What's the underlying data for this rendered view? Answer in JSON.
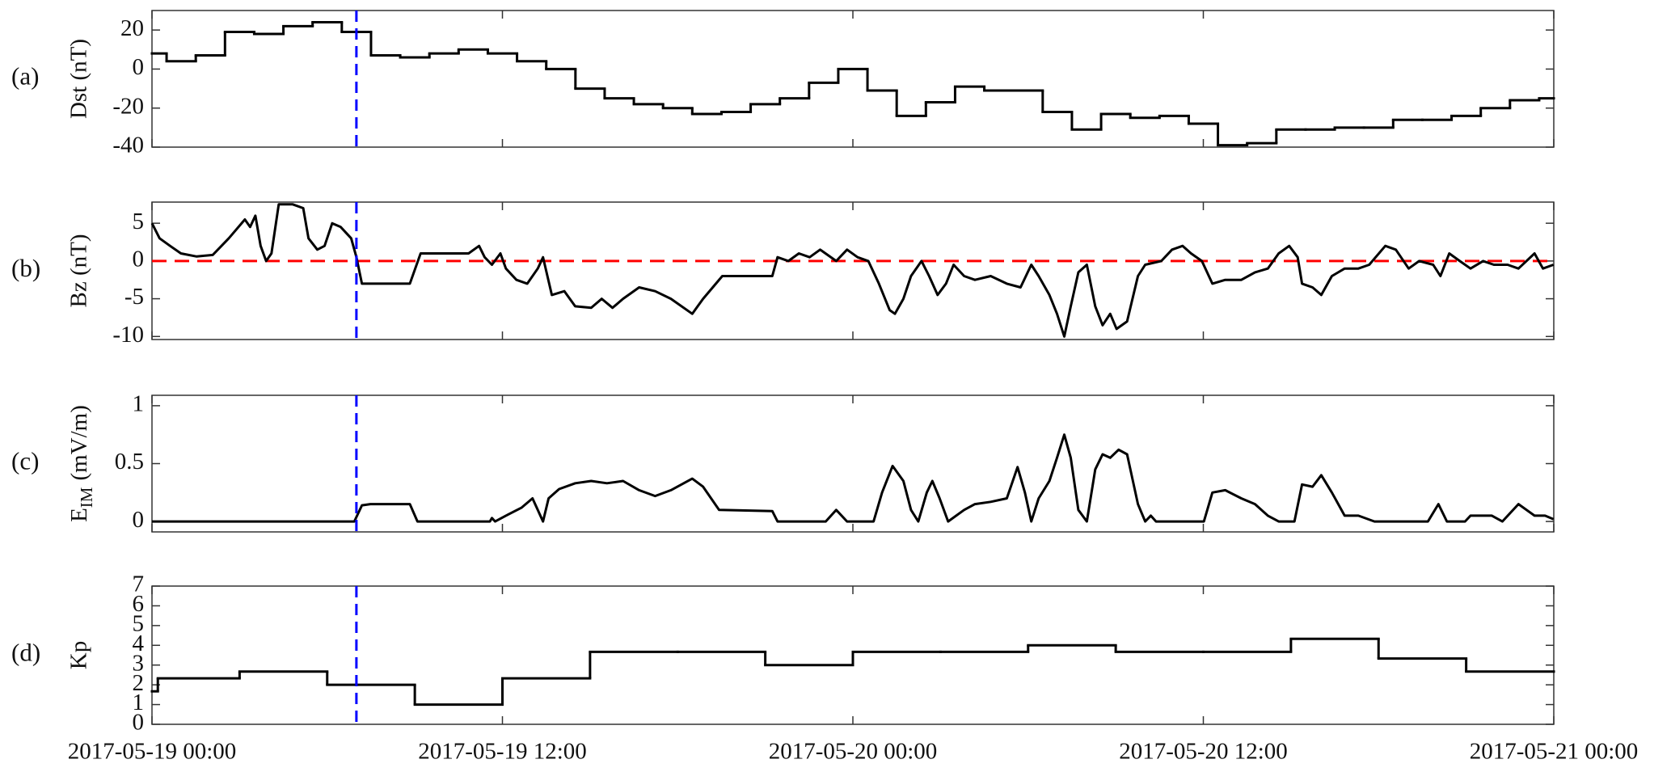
{
  "chart_data": [
    {
      "type": "line",
      "panel_label": "(a)",
      "ylabel": "Dst (nT)",
      "color": "#000000",
      "step": "post",
      "xlim": [
        0,
        48
      ],
      "xticks": [
        0,
        12,
        24,
        36,
        48
      ],
      "ylim": [
        -40,
        30
      ],
      "yticks": [
        -40,
        -20,
        0,
        20
      ],
      "vline": {
        "x": 7,
        "color": "#0000ff"
      },
      "x": [
        0,
        0.5,
        1.5,
        2.5,
        3.5,
        4.5,
        5.5,
        6.5,
        7.5,
        8.5,
        9.5,
        10.5,
        11.5,
        12.5,
        13.5,
        14.5,
        15.5,
        16.5,
        17.5,
        18.5,
        19.5,
        20.5,
        21.5,
        22.5,
        23.5,
        24.5,
        25.5,
        26.5,
        27.5,
        28.5,
        29.5,
        30.5,
        31.5,
        32.5,
        33.5,
        34.5,
        35.5,
        36.5,
        37.5,
        38.5,
        39.5,
        40.5,
        41.5,
        42.5,
        43.5,
        44.5,
        45.5,
        46.5,
        47.5
      ],
      "values": [
        8,
        4,
        7,
        19,
        18,
        22,
        24,
        19,
        7,
        6,
        8,
        10,
        8,
        4,
        0,
        -10,
        -15,
        -18,
        -20,
        -23,
        -22,
        -18,
        -15,
        -7,
        0,
        -11,
        -24,
        -17,
        -9,
        -11,
        -11,
        -22,
        -31,
        -23,
        -25,
        -24,
        -28,
        -39,
        -38,
        -31,
        -31,
        -30,
        -30,
        -26,
        -26,
        -24,
        -20,
        -16,
        -15
      ]
    },
    {
      "type": "line",
      "panel_label": "(b)",
      "ylabel": "Bz (nT)",
      "color": "#000000",
      "xlim": [
        0,
        48
      ],
      "xticks": [
        0,
        12,
        24,
        36,
        48
      ],
      "ylim": [
        -10.4,
        7.8
      ],
      "yticks": [
        -10,
        -5,
        0,
        5
      ],
      "vline": {
        "x": 7,
        "color": "#0000ff"
      },
      "hline": {
        "y": 0,
        "color": "#ff0000"
      },
      "x": [
        0,
        0.26,
        0.62,
        0.99,
        1.53,
        2.08,
        2.63,
        3.18,
        3.36,
        3.54,
        3.72,
        3.91,
        4.09,
        4.34,
        4.82,
        5.18,
        5.36,
        5.66,
        5.91,
        6.17,
        6.46,
        6.82,
        7.0,
        7.19,
        7.92,
        8.83,
        9.2,
        10.84,
        11.2,
        11.39,
        11.64,
        11.93,
        12.12,
        12.48,
        12.85,
        13.21,
        13.39,
        13.69,
        14.12,
        14.49,
        15.04,
        15.4,
        15.77,
        16.13,
        16.68,
        17.23,
        17.77,
        18.5,
        18.87,
        19.53,
        21.24,
        21.42,
        21.79,
        22.15,
        22.52,
        22.88,
        23.43,
        23.8,
        24.16,
        24.53,
        24.89,
        25.26,
        25.44,
        25.73,
        25.99,
        26.35,
        26.61,
        26.9,
        27.19,
        27.45,
        27.81,
        28.18,
        28.72,
        29.27,
        29.74,
        30.11,
        30.36,
        30.73,
        30.99,
        31.24,
        31.46,
        31.72,
        32.01,
        32.3,
        32.55,
        32.81,
        33.03,
        33.39,
        33.76,
        34.01,
        34.56,
        34.93,
        35.29,
        35.58,
        35.95,
        36.31,
        36.75,
        37.3,
        37.77,
        38.21,
        38.58,
        38.94,
        39.23,
        39.38,
        39.74,
        40.04,
        40.4,
        40.84,
        41.31,
        41.68,
        42.23,
        42.59,
        43.03,
        43.39,
        43.87,
        44.12,
        44.42,
        44.78,
        45.15,
        45.58,
        45.95,
        46.42,
        46.79,
        47.34,
        47.63,
        47.99
      ],
      "values": [
        5,
        3,
        2,
        1,
        0.6,
        0.8,
        3,
        5.5,
        4.5,
        6,
        2,
        0,
        1,
        7.5,
        7.5,
        7,
        3,
        1.5,
        2,
        5,
        4.5,
        3,
        0.5,
        -3,
        -3,
        -3,
        1,
        1,
        2,
        0.5,
        -0.5,
        1,
        -1,
        -2.5,
        -3,
        -1,
        0.5,
        -4.5,
        -4,
        -6,
        -6.2,
        -5,
        -6.2,
        -5,
        -3.5,
        -4,
        -5,
        -7,
        -5,
        -2,
        -2,
        0.5,
        0,
        1,
        0.5,
        1.5,
        0,
        1.5,
        0.5,
        0,
        -3,
        -6.5,
        -7,
        -5,
        -2,
        0,
        -2,
        -4.5,
        -3,
        -0.5,
        -2,
        -2.5,
        -2,
        -3,
        -3.5,
        -0.5,
        -2,
        -4.5,
        -7,
        -10,
        -6,
        -1.5,
        -0.5,
        -6,
        -8.5,
        -7,
        -9,
        -8,
        -2,
        -0.5,
        0,
        1.5,
        2,
        1,
        0,
        -3,
        -2.5,
        -2.5,
        -1.5,
        -1,
        1,
        2,
        0.5,
        -3,
        -3.5,
        -4.5,
        -2,
        -1,
        -1,
        -0.5,
        2,
        1.5,
        -1,
        0,
        -0.5,
        -2,
        1,
        0,
        -1,
        0,
        -0.5,
        -0.5,
        -1,
        1,
        -1,
        -0.5
      ]
    },
    {
      "type": "line",
      "panel_label": "(c)",
      "ylabel": {
        "main": "E",
        "sub": "IM",
        "unit": "(mV/m)"
      },
      "color": "#000000",
      "xlim": [
        0,
        48
      ],
      "xticks": [
        0,
        12,
        24,
        36,
        48
      ],
      "ylim": [
        -0.09,
        1.09
      ],
      "yticks": [
        0,
        0.5,
        1
      ],
      "vline": {
        "x": 7,
        "color": "#0000ff"
      },
      "x": [
        0,
        6.93,
        7.19,
        7.48,
        8.83,
        9.09,
        11.57,
        11.64,
        11.75,
        12.12,
        12.66,
        13.03,
        13.21,
        13.39,
        13.58,
        13.94,
        14.49,
        15.04,
        15.58,
        16.13,
        16.68,
        17.23,
        17.77,
        18.5,
        18.87,
        19.42,
        21.24,
        21.42,
        23.07,
        23.43,
        23.8,
        24.71,
        25.0,
        25.36,
        25.73,
        25.99,
        26.24,
        26.53,
        26.72,
        26.97,
        27.26,
        27.81,
        28.18,
        28.72,
        29.27,
        29.64,
        29.89,
        30.11,
        30.36,
        30.73,
        30.99,
        31.24,
        31.46,
        31.72,
        32.01,
        32.3,
        32.55,
        32.81,
        33.1,
        33.39,
        33.76,
        34.01,
        34.2,
        34.38,
        36.02,
        36.31,
        36.75,
        37.3,
        37.77,
        38.21,
        38.58,
        39.12,
        39.38,
        39.74,
        40.04,
        40.4,
        40.84,
        41.31,
        41.86,
        43.69,
        44.05,
        44.34,
        44.96,
        45.15,
        45.88,
        46.24,
        46.79,
        47.34,
        47.7,
        47.99
      ],
      "values": [
        0,
        0,
        0.14,
        0.15,
        0.15,
        0,
        0,
        0.03,
        0,
        0.05,
        0.12,
        0.2,
        0.1,
        0,
        0.2,
        0.28,
        0.33,
        0.35,
        0.33,
        0.35,
        0.27,
        0.22,
        0.27,
        0.37,
        0.3,
        0.1,
        0.09,
        0,
        0,
        0.1,
        0,
        0,
        0.25,
        0.48,
        0.35,
        0.1,
        0,
        0.25,
        0.35,
        0.2,
        0,
        0.1,
        0.15,
        0.17,
        0.2,
        0.47,
        0.25,
        0,
        0.2,
        0.35,
        0.55,
        0.75,
        0.55,
        0.1,
        0,
        0.45,
        0.58,
        0.55,
        0.62,
        0.58,
        0.15,
        0,
        0.05,
        0,
        0,
        0.25,
        0.27,
        0.2,
        0.15,
        0.05,
        0,
        0,
        0.32,
        0.3,
        0.4,
        0.25,
        0.05,
        0.05,
        0,
        0,
        0.15,
        0,
        0,
        0.05,
        0.05,
        0,
        0.15,
        0.05,
        0.05,
        0.02
      ]
    },
    {
      "type": "line",
      "panel_label": "(d)",
      "ylabel": "Kp",
      "color": "#000000",
      "step": "post",
      "xlim": [
        0,
        48
      ],
      "xticks": [
        {
          "value": 0,
          "label": "2017-05-19 00:00"
        },
        {
          "value": 12,
          "label": "2017-05-19 12:00"
        },
        {
          "value": 24,
          "label": "2017-05-20 00:00"
        },
        {
          "value": 36,
          "label": "2017-05-20 12:00"
        },
        {
          "value": 48,
          "label": "2017-05-21 00:00"
        }
      ],
      "ylim": [
        0,
        7
      ],
      "yticks": [
        0,
        1,
        2,
        3,
        4,
        5,
        6,
        7
      ],
      "vline": {
        "x": 7,
        "color": "#0000ff"
      },
      "x": [
        0,
        0.2,
        3,
        6,
        9,
        12,
        15,
        18,
        21,
        24,
        27,
        30,
        33,
        36,
        39,
        42,
        45
      ],
      "values": [
        1.67,
        2.33,
        2.67,
        2.0,
        1.0,
        2.33,
        3.67,
        3.67,
        3.0,
        3.67,
        3.67,
        4.0,
        3.67,
        3.67,
        4.33,
        3.33,
        2.67
      ]
    }
  ]
}
